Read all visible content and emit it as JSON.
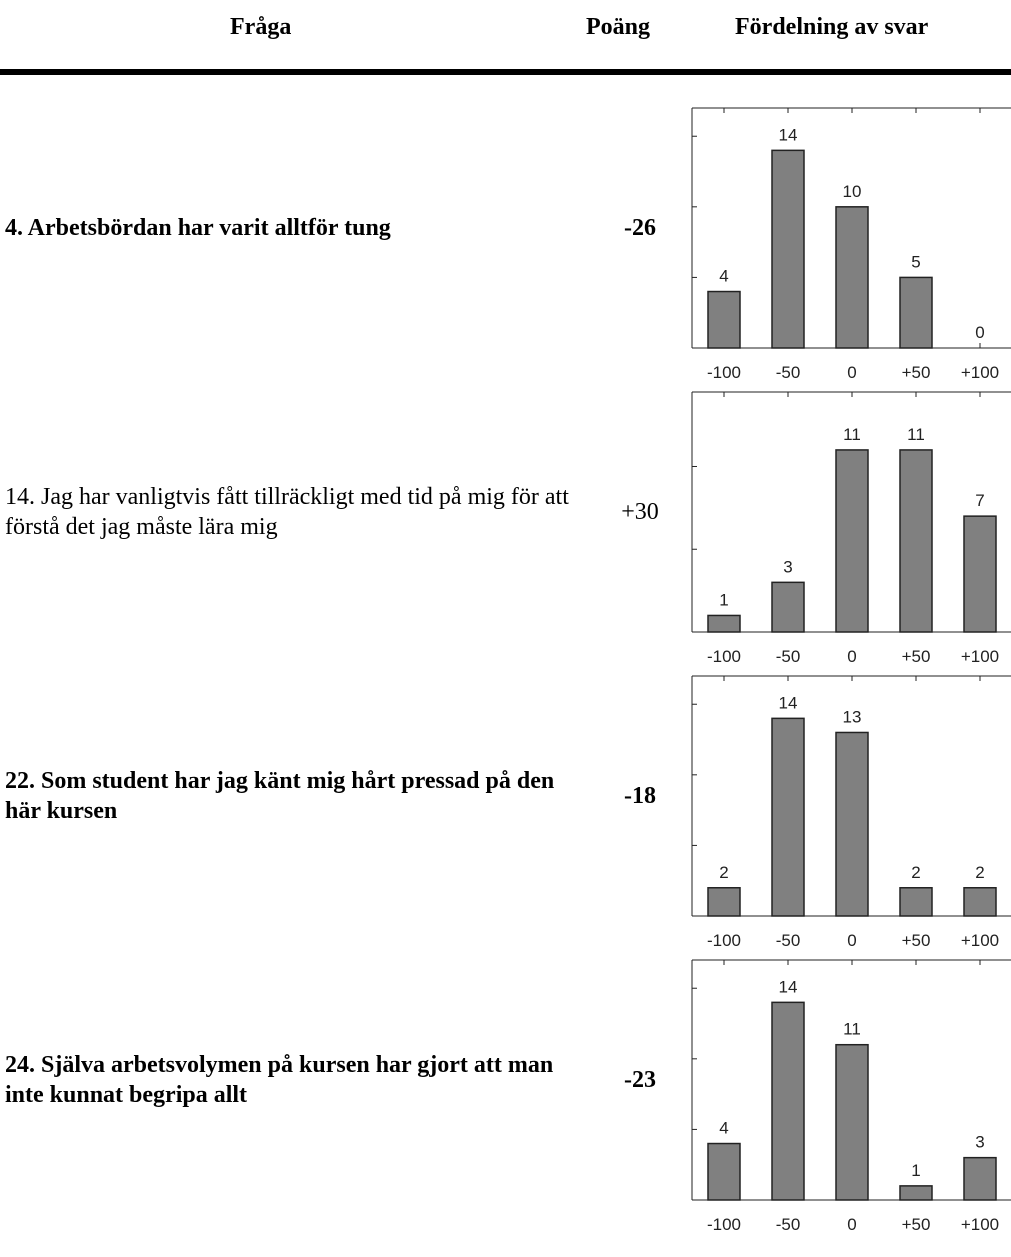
{
  "header": {
    "question": "Fråga",
    "score": "Poäng",
    "distribution": "Fördelning av svar"
  },
  "rows": [
    {
      "question": "4. Arbetsbördan har varit alltför tung",
      "score": "-26",
      "bold": true,
      "chart": {
        "type": "bar",
        "categories": [
          "-100",
          "-50",
          "0",
          "+50",
          "+100"
        ],
        "values": [
          4,
          14,
          10,
          5,
          0
        ],
        "color": "#808080",
        "ylim": [
          0,
          17
        ],
        "yticks": [
          5,
          10,
          15
        ]
      }
    },
    {
      "question": "14. Jag har vanligtvis fått tillräckligt med tid på mig för att förstå det jag måste lära mig",
      "score": "+30",
      "bold": false,
      "chart": {
        "type": "bar",
        "categories": [
          "-100",
          "-50",
          "0",
          "+50",
          "+100"
        ],
        "values": [
          1,
          3,
          11,
          11,
          7
        ],
        "color": "#808080",
        "ylim": [
          0,
          14.5
        ],
        "yticks": [
          5,
          10
        ]
      }
    },
    {
      "question": "22. Som student har jag känt mig hårt pressad på den här kursen",
      "score": "-18",
      "bold": true,
      "chart": {
        "type": "bar",
        "categories": [
          "-100",
          "-50",
          "0",
          "+50",
          "+100"
        ],
        "values": [
          2,
          14,
          13,
          2,
          2
        ],
        "color": "#808080",
        "ylim": [
          0,
          17
        ],
        "yticks": [
          5,
          10,
          15
        ]
      }
    },
    {
      "question": "24. Själva arbetsvolymen på kursen har gjort att man inte kunnat begripa allt",
      "score": "-23",
      "bold": true,
      "chart": {
        "type": "bar",
        "categories": [
          "-100",
          "-50",
          "0",
          "+50",
          "+100"
        ],
        "values": [
          4,
          14,
          11,
          1,
          3
        ],
        "color": "#808080",
        "ylim": [
          0,
          17
        ],
        "yticks": [
          5,
          10,
          15
        ]
      }
    }
  ]
}
